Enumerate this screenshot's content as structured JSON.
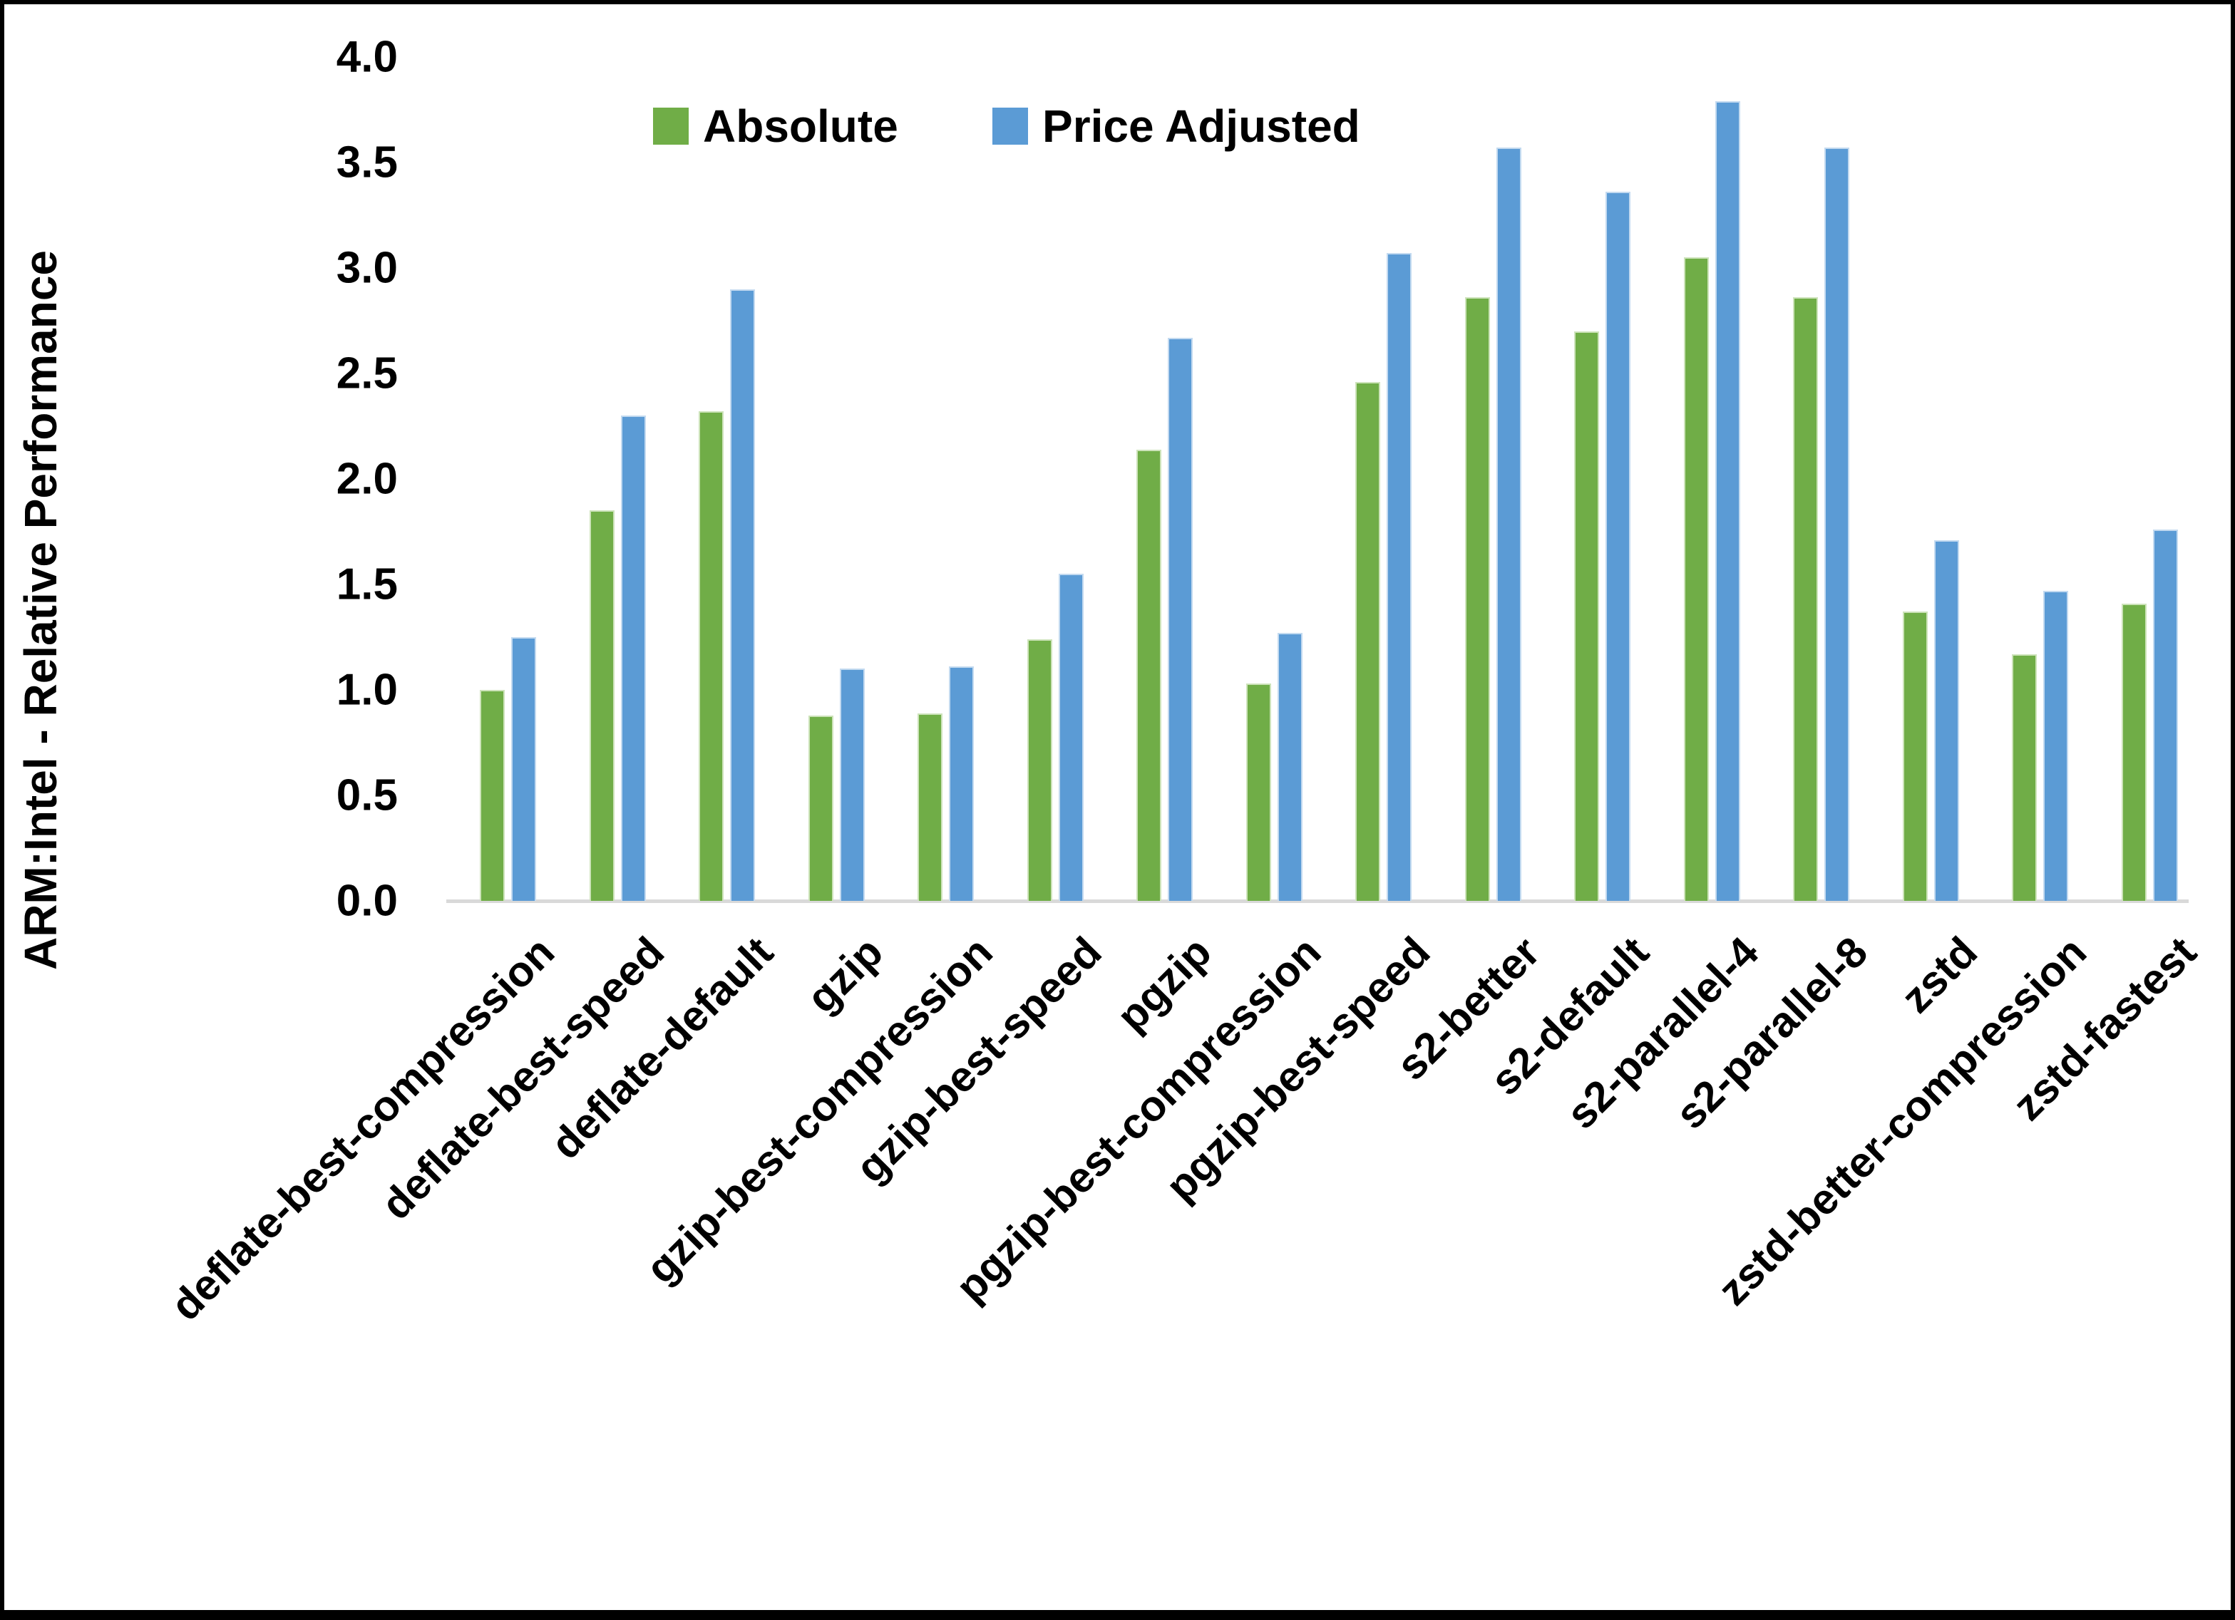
{
  "chart_data": {
    "type": "bar",
    "title": "",
    "xlabel": "",
    "ylabel": "ARM:Intel - Relative Performance",
    "ylim": [
      0.0,
      4.0
    ],
    "ytick_step": 0.5,
    "yticks": [
      "0.0",
      "0.5",
      "1.0",
      "1.5",
      "2.0",
      "2.5",
      "3.0",
      "3.5",
      "4.0"
    ],
    "grid": false,
    "legend_position": "top-center",
    "axis_line_color": "#D9D9D9",
    "categories": [
      "deflate-best-compression",
      "deflate-best-speed",
      "deflate-default",
      "gzip",
      "gzip-best-compression",
      "gzip-best-speed",
      "pgzip",
      "pgzip-best-compression",
      "pgzip-best-speed",
      "s2-better",
      "s2-default",
      "s2-parallel-4",
      "s2-parallel-8",
      "zstd",
      "zstd-better-compression",
      "zstd-fastest"
    ],
    "series": [
      {
        "name": "Absolute",
        "color": "#70AD47",
        "values": [
          1.0,
          1.85,
          2.32,
          0.88,
          0.89,
          1.24,
          2.14,
          1.03,
          2.46,
          2.86,
          2.7,
          3.05,
          2.86,
          1.37,
          1.17,
          1.41
        ]
      },
      {
        "name": "Price Adjusted",
        "color": "#5B9BD5",
        "values": [
          1.25,
          2.3,
          2.9,
          1.1,
          1.11,
          1.55,
          2.67,
          1.27,
          3.07,
          3.57,
          3.36,
          3.79,
          3.57,
          1.71,
          1.47,
          1.76
        ]
      }
    ]
  }
}
